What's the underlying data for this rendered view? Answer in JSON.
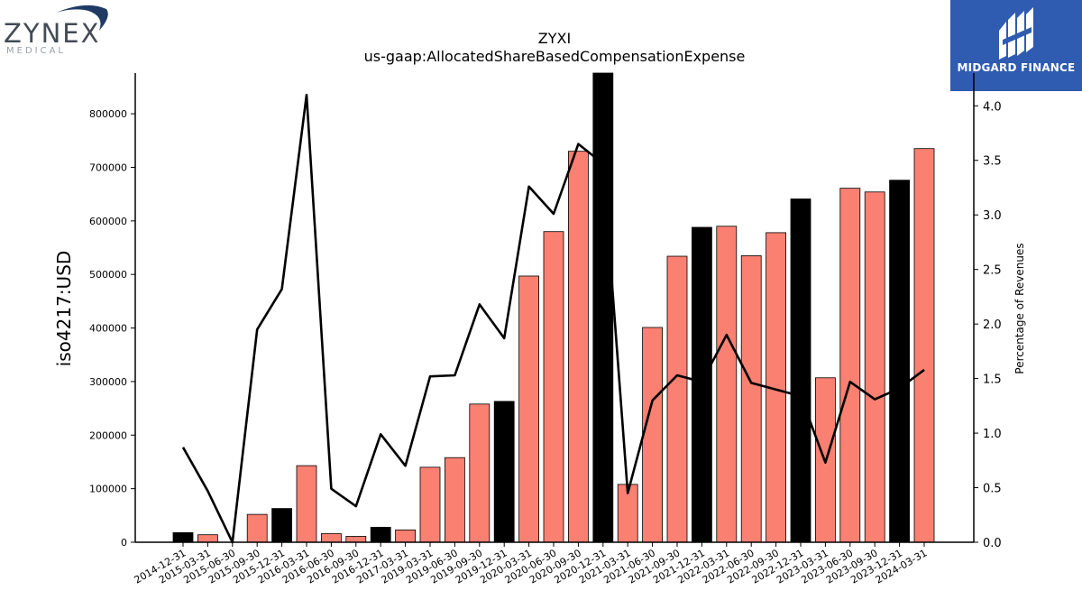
{
  "logos": {
    "left_main": "ZYNEX",
    "left_sub": "MEDICAL",
    "right_name": "MIDGARD FINANCE"
  },
  "chart_data": {
    "type": "bar",
    "title": "ZYXI",
    "subtitle": "us-gaap:AllocatedShareBasedCompensationExpense",
    "ylabel": "iso4217:USD",
    "ylabel_right": "Percentage of Revenues",
    "ylim": [
      0,
      876000
    ],
    "ylim_right": [
      0,
      4.3
    ],
    "yticks": [
      0,
      100000,
      200000,
      300000,
      400000,
      500000,
      600000,
      700000,
      800000
    ],
    "yticks_right": [
      0.0,
      0.5,
      1.0,
      1.5,
      2.0,
      2.5,
      3.0,
      3.5,
      4.0
    ],
    "categories": [
      "2014-12-31",
      "2015-03-31",
      "2015-06-30",
      "2015-09-30",
      "2015-12-31",
      "2016-03-31",
      "2016-06-30",
      "2016-09-30",
      "2016-12-31",
      "2017-03-31",
      "2019-03-31",
      "2019-06-30",
      "2019-09-30",
      "2019-12-31",
      "2020-03-31",
      "2020-06-30",
      "2020-09-30",
      "2020-12-31",
      "2021-03-31",
      "2021-06-30",
      "2021-09-30",
      "2021-12-31",
      "2022-03-31",
      "2022-06-30",
      "2022-09-30",
      "2022-12-31",
      "2023-03-31",
      "2023-06-30",
      "2023-09-30",
      "2023-12-31",
      "2024-03-31"
    ],
    "series": [
      {
        "type": "bar",
        "values": [
          18000,
          14000,
          0,
          52000,
          63000,
          143000,
          16000,
          11000,
          28000,
          23000,
          140000,
          158000,
          258000,
          263000,
          497000,
          580000,
          730000,
          876000,
          108000,
          401000,
          534000,
          588000,
          590000,
          535000,
          578000,
          641000,
          307000,
          661000,
          654000,
          676000,
          735000
        ],
        "highlight": [
          true,
          false,
          false,
          false,
          true,
          false,
          false,
          false,
          true,
          false,
          false,
          false,
          false,
          true,
          false,
          false,
          false,
          true,
          false,
          false,
          false,
          true,
          false,
          false,
          false,
          true,
          false,
          false,
          false,
          true,
          false
        ]
      },
      {
        "type": "line",
        "axis": "right",
        "values": [
          0.87,
          0.47,
          0.0,
          1.95,
          2.32,
          4.1,
          0.49,
          0.33,
          0.99,
          0.7,
          1.52,
          1.53,
          2.18,
          1.87,
          3.26,
          3.01,
          3.65,
          3.47,
          0.45,
          1.3,
          1.53,
          1.47,
          1.9,
          1.46,
          1.4,
          1.34,
          0.73,
          1.47,
          1.31,
          1.41,
          1.58
        ]
      }
    ],
    "colors": {
      "bar": "#fa8072",
      "bar_highlight": "#000000",
      "line": "#000000"
    },
    "grid": false
  }
}
